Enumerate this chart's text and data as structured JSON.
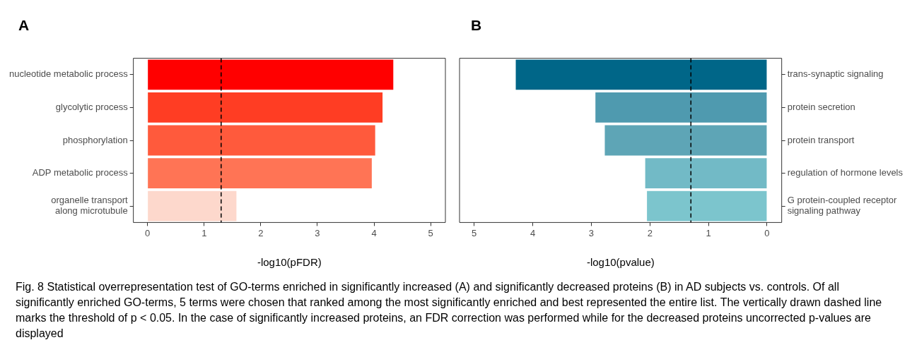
{
  "chart_data": [
    {
      "type": "bar",
      "title": "A",
      "orientation": "horizontal",
      "categories": [
        "nucleotide metabolic process",
        "glycolytic process",
        "phosphorylation",
        "ADP metabolic process",
        "organelle transport\nalong microtubule"
      ],
      "values": [
        4.34,
        4.15,
        4.02,
        3.96,
        1.57
      ],
      "colors": [
        "#ff0000",
        "#ff3d23",
        "#ff5a3c",
        "#ff7455",
        "#fdd8cc"
      ],
      "xlabel": "-log10(pFDR)",
      "xlim": [
        -0.25,
        5.26
      ],
      "xticks": [
        0,
        1,
        2,
        3,
        4,
        5
      ],
      "ref_lines": [
        {
          "axis": "x",
          "value": 1.3,
          "color": "#000000",
          "line_style": "dashed"
        }
      ],
      "grid": false,
      "legend": false,
      "annotations": [
        "Fig. 8  Statistical overrepresentation test of GO-terms enriched in significantly increased (A) and significantly decreased proteins (B) in AD subjects vs. controls. Of all significantly enriched GO-terms, 5 terms were chosen that ranked among the most significantly enriched and best represented the entire list. The vertically drawn dashed line marks the threshold of p < 0.05. In the case of significantly increased proteins, an FDR correction was performed while for the decreased proteins uncorrected p-values are displayed"
      ]
    },
    {
      "type": "bar",
      "title": "B",
      "orientation": "horizontal",
      "categories": [
        "trans-synaptic signaling",
        "protein secretion",
        "protein transport",
        "regulation of hormone levels",
        "G protein-coupled receptor\nsignaling pathway"
      ],
      "values": [
        4.29,
        2.93,
        2.77,
        2.08,
        2.05
      ],
      "colors": [
        "#006688",
        "#4f9aaf",
        "#5ea5b6",
        "#72bac6",
        "#7cc5cd"
      ],
      "xlabel": "-log10(pvalue)",
      "xlim": [
        5.25,
        -0.25
      ],
      "xticks": [
        0,
        1,
        2,
        3,
        4,
        5
      ],
      "ref_lines": [
        {
          "axis": "x",
          "value": 1.3,
          "color": "#000000",
          "line_style": "dashed"
        }
      ],
      "grid": false,
      "legend": false
    }
  ]
}
